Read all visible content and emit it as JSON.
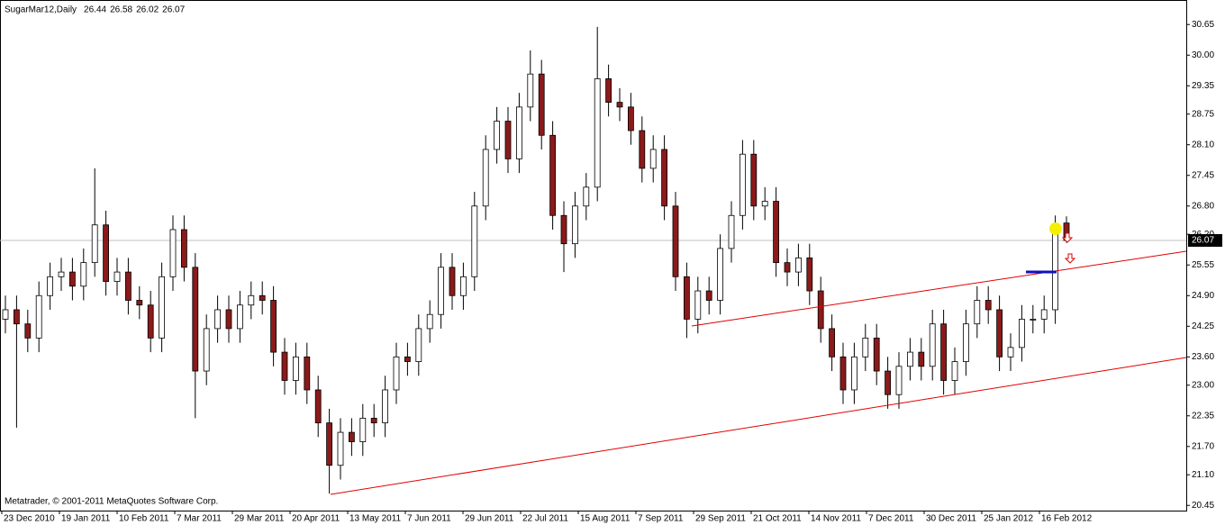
{
  "chart_data": {
    "type": "candlestick",
    "title": "SugarMar12,Daily",
    "header_ohlc": [
      26.44,
      26.58,
      26.02,
      26.07
    ],
    "footer": "Metatrader, © 2001-2011 MetaQuotes Software Corp.",
    "last_price": 26.07,
    "x_labels": [
      "23 Dec 2010",
      "19 Jan 2011",
      "10 Feb 2011",
      "7 Mar 2011",
      "29 Mar 2011",
      "20 Apr 2011",
      "13 May 2011",
      "7 Jun 2011",
      "29 Jun 2011",
      "22 Jul 2011",
      "15 Aug 2011",
      "7 Sep 2011",
      "29 Sep 2011",
      "21 Oct 2011",
      "14 Nov 2011",
      "7 Dec 2011",
      "30 Dec 2011",
      "25 Jan 2012",
      "16 Feb 2012"
    ],
    "ylim": [
      20.34,
      31.17
    ],
    "yticks": [
      20.45,
      {
        "value": 21.1,
        "label": "21.10"
      },
      {
        "value": 21.7,
        "label": "21.70"
      },
      22.35,
      {
        "value": 23.0,
        "label": "23.00"
      },
      {
        "value": 23.6,
        "label": "23.60"
      },
      24.25,
      {
        "value": 24.9,
        "label": "24.90"
      },
      25.55,
      {
        "value": 26.2,
        "label": "26.20"
      },
      {
        "value": 26.8,
        "label": "26.80"
      },
      27.45,
      {
        "value": 28.1,
        "label": "28.10"
      },
      28.75,
      29.35,
      {
        "value": 30.0,
        "label": "30.00"
      },
      30.65
    ],
    "open": [
      24.4,
      24.6,
      24.3,
      24.0,
      24.9,
      25.3,
      25.4,
      25.1,
      25.6,
      26.4,
      25.2,
      25.4,
      24.8,
      24.7,
      24.0,
      25.3,
      26.3,
      25.5,
      23.3,
      24.2,
      24.6,
      24.2,
      24.7,
      24.9,
      24.8,
      23.7,
      23.1,
      23.6,
      22.9,
      22.2,
      21.3,
      22.0,
      21.8,
      22.3,
      22.2,
      22.9,
      23.6,
      23.5,
      24.2,
      24.5,
      25.5,
      24.9,
      25.3,
      26.8,
      28.0,
      28.6,
      27.8,
      28.9,
      29.6,
      28.3,
      26.6,
      26.0,
      26.8,
      27.2,
      29.5,
      29.0,
      28.9,
      28.4,
      27.6,
      28.0,
      26.8,
      25.3,
      24.4,
      25.0,
      24.8,
      25.9,
      26.6,
      27.9,
      26.8,
      26.9,
      25.6,
      25.4,
      25.7,
      25.0,
      24.2,
      23.6,
      22.9,
      23.6,
      24.0,
      23.3,
      22.8,
      23.4,
      23.7,
      23.4,
      24.3,
      23.1,
      23.5,
      24.3,
      24.8,
      24.6,
      23.6,
      23.8,
      24.4,
      24.4,
      24.6,
      26.44
    ],
    "high": [
      24.9,
      24.9,
      24.6,
      25.2,
      25.6,
      25.7,
      25.7,
      25.9,
      27.6,
      26.7,
      25.7,
      25.7,
      25.1,
      25.0,
      25.6,
      26.6,
      26.6,
      25.8,
      24.5,
      24.9,
      24.9,
      25.0,
      25.2,
      25.2,
      25.1,
      24.0,
      23.9,
      23.9,
      23.2,
      22.5,
      22.3,
      22.3,
      22.6,
      22.6,
      23.2,
      23.9,
      23.9,
      24.5,
      24.8,
      25.8,
      25.8,
      25.6,
      27.1,
      28.3,
      28.9,
      28.9,
      29.2,
      30.1,
      29.9,
      28.6,
      26.9,
      27.1,
      27.5,
      30.6,
      29.8,
      29.3,
      29.2,
      28.7,
      28.3,
      28.3,
      27.1,
      25.6,
      25.3,
      25.3,
      26.2,
      26.9,
      28.2,
      28.2,
      27.2,
      27.2,
      25.9,
      26.0,
      26.0,
      25.3,
      24.5,
      23.9,
      23.9,
      24.3,
      24.3,
      23.6,
      23.7,
      24.0,
      24.0,
      24.6,
      24.6,
      23.8,
      24.6,
      25.1,
      25.1,
      24.9,
      24.1,
      24.7,
      24.7,
      24.9,
      26.6,
      26.58
    ],
    "low": [
      24.1,
      22.1,
      23.7,
      23.7,
      24.6,
      25.0,
      24.8,
      24.8,
      25.3,
      24.9,
      24.9,
      24.5,
      24.4,
      23.7,
      23.7,
      25.0,
      25.2,
      22.3,
      23.0,
      23.9,
      23.9,
      23.9,
      24.4,
      24.5,
      23.4,
      22.8,
      22.8,
      22.6,
      21.9,
      20.7,
      21.0,
      21.5,
      21.5,
      21.9,
      21.9,
      22.6,
      23.2,
      23.2,
      23.9,
      24.2,
      24.6,
      24.6,
      25.0,
      26.5,
      27.7,
      27.5,
      27.5,
      28.6,
      28.0,
      26.3,
      25.4,
      25.7,
      26.5,
      26.9,
      28.7,
      28.6,
      28.1,
      27.3,
      27.3,
      26.5,
      25.0,
      24.0,
      24.1,
      24.5,
      24.5,
      25.6,
      26.3,
      26.5,
      26.5,
      25.3,
      25.1,
      25.1,
      24.7,
      23.9,
      23.3,
      22.6,
      22.6,
      23.3,
      23.0,
      22.5,
      22.5,
      23.1,
      23.1,
      23.1,
      22.8,
      22.8,
      23.2,
      24.0,
      24.3,
      23.3,
      23.3,
      23.5,
      24.1,
      24.1,
      24.3,
      26.02
    ],
    "close": [
      24.6,
      24.3,
      24.0,
      24.9,
      25.3,
      25.4,
      25.1,
      25.6,
      26.4,
      25.2,
      25.4,
      24.8,
      24.7,
      24.0,
      25.3,
      26.3,
      25.5,
      23.3,
      24.2,
      24.6,
      24.2,
      24.7,
      24.9,
      24.8,
      23.7,
      23.1,
      23.6,
      22.9,
      22.2,
      21.3,
      22.0,
      21.8,
      22.3,
      22.2,
      22.9,
      23.6,
      23.5,
      24.2,
      24.5,
      25.5,
      24.9,
      25.3,
      26.8,
      28.0,
      28.6,
      27.8,
      28.9,
      29.6,
      28.3,
      26.6,
      26.0,
      26.8,
      27.2,
      29.5,
      29.0,
      28.9,
      28.4,
      27.6,
      28.0,
      26.8,
      25.3,
      24.4,
      25.0,
      24.8,
      25.9,
      26.6,
      27.9,
      26.8,
      26.9,
      25.6,
      25.4,
      25.7,
      25.0,
      24.2,
      23.6,
      22.9,
      23.6,
      24.0,
      23.3,
      22.8,
      23.4,
      23.7,
      23.4,
      24.3,
      23.1,
      23.5,
      24.3,
      24.8,
      24.6,
      23.6,
      23.8,
      24.4,
      24.4,
      24.6,
      26.3,
      26.07
    ],
    "bull_color": "#ffffff",
    "bear_color": "#8b1a1a",
    "wick_color": "#000000"
  }
}
